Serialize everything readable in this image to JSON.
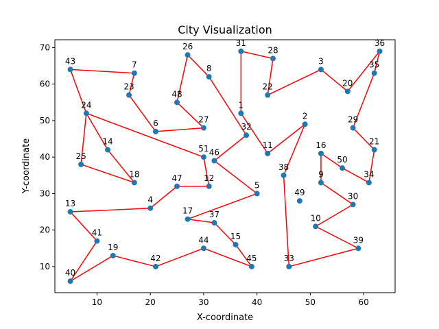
{
  "chart_data": {
    "type": "scatter",
    "title": "City Visualization",
    "xlabel": "X-coordinate",
    "ylabel": "Y-coordinate",
    "xlim": [
      2.1,
      65.9
    ],
    "ylim": [
      2.85,
      72.15
    ],
    "xticks": [
      10,
      20,
      30,
      40,
      50,
      60
    ],
    "yticks": [
      10,
      20,
      30,
      40,
      50,
      60,
      70
    ],
    "grid": false,
    "marker_color": "#1f77b4",
    "route_color": "#ff0000",
    "points": [
      {
        "label": "1",
        "x": 37,
        "y": 52
      },
      {
        "label": "2",
        "x": 49,
        "y": 49
      },
      {
        "label": "3",
        "x": 52,
        "y": 64
      },
      {
        "label": "4",
        "x": 20,
        "y": 26
      },
      {
        "label": "5",
        "x": 40,
        "y": 30
      },
      {
        "label": "6",
        "x": 21,
        "y": 47
      },
      {
        "label": "7",
        "x": 17,
        "y": 63
      },
      {
        "label": "8",
        "x": 31,
        "y": 62
      },
      {
        "label": "9",
        "x": 52,
        "y": 33
      },
      {
        "label": "10",
        "x": 51,
        "y": 21
      },
      {
        "label": "11",
        "x": 42,
        "y": 41
      },
      {
        "label": "12",
        "x": 31,
        "y": 32
      },
      {
        "label": "13",
        "x": 5,
        "y": 25
      },
      {
        "label": "14",
        "x": 12,
        "y": 42
      },
      {
        "label": "15",
        "x": 36,
        "y": 16
      },
      {
        "label": "16",
        "x": 52,
        "y": 41
      },
      {
        "label": "17",
        "x": 27,
        "y": 23
      },
      {
        "label": "18",
        "x": 17,
        "y": 33
      },
      {
        "label": "19",
        "x": 13,
        "y": 13
      },
      {
        "label": "20",
        "x": 57,
        "y": 58
      },
      {
        "label": "21",
        "x": 62,
        "y": 42
      },
      {
        "label": "22",
        "x": 42,
        "y": 57
      },
      {
        "label": "23",
        "x": 16,
        "y": 57
      },
      {
        "label": "24",
        "x": 8,
        "y": 52
      },
      {
        "label": "25",
        "x": 7,
        "y": 38
      },
      {
        "label": "26",
        "x": 27,
        "y": 68
      },
      {
        "label": "27",
        "x": 30,
        "y": 48
      },
      {
        "label": "28",
        "x": 43,
        "y": 67
      },
      {
        "label": "29",
        "x": 58,
        "y": 48
      },
      {
        "label": "30",
        "x": 58,
        "y": 27
      },
      {
        "label": "31",
        "x": 37,
        "y": 69
      },
      {
        "label": "32",
        "x": 38,
        "y": 46
      },
      {
        "label": "33",
        "x": 46,
        "y": 10
      },
      {
        "label": "34",
        "x": 61,
        "y": 33
      },
      {
        "label": "35",
        "x": 62,
        "y": 63
      },
      {
        "label": "36",
        "x": 63,
        "y": 69
      },
      {
        "label": "37",
        "x": 32,
        "y": 22
      },
      {
        "label": "38",
        "x": 45,
        "y": 35
      },
      {
        "label": "39",
        "x": 59,
        "y": 15
      },
      {
        "label": "40",
        "x": 5,
        "y": 6
      },
      {
        "label": "41",
        "x": 10,
        "y": 17
      },
      {
        "label": "42",
        "x": 21,
        "y": 10
      },
      {
        "label": "43",
        "x": 5,
        "y": 64
      },
      {
        "label": "44",
        "x": 30,
        "y": 15
      },
      {
        "label": "45",
        "x": 39,
        "y": 10
      },
      {
        "label": "46",
        "x": 32,
        "y": 39
      },
      {
        "label": "47",
        "x": 25,
        "y": 32
      },
      {
        "label": "48",
        "x": 25,
        "y": 55
      },
      {
        "label": "49",
        "x": 48,
        "y": 28
      },
      {
        "label": "50",
        "x": 56,
        "y": 37
      },
      {
        "label": "51",
        "x": 30,
        "y": 40
      }
    ],
    "route": [
      "43",
      "7",
      "23",
      "6",
      "27",
      "48",
      "26",
      "8",
      "32",
      "46",
      "5",
      "17",
      "37",
      "15",
      "45",
      "44",
      "42",
      "19",
      "40",
      "41",
      "13",
      "4",
      "47",
      "12",
      "51",
      "24",
      "14",
      "18",
      "25",
      "24",
      "43"
    ],
    "route2": [
      "31",
      "1",
      "11",
      "2",
      "38",
      "33",
      "39",
      "10",
      "30",
      "9",
      "16",
      "50",
      "34",
      "21",
      "29",
      "35",
      "36",
      "20",
      "3",
      "22",
      "28",
      "31"
    ]
  }
}
